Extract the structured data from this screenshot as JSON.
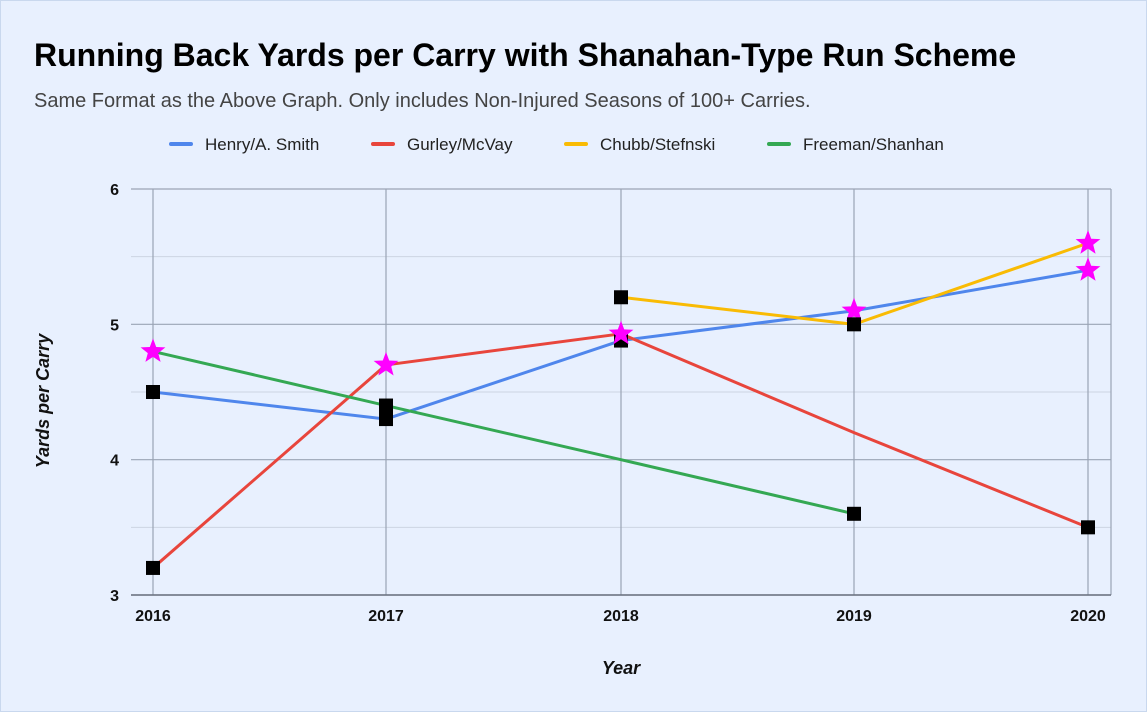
{
  "chart_data": {
    "type": "line",
    "title": "Running Back Yards per Carry with Shanahan-Type Run Scheme",
    "subtitle": "Same Format as the Above Graph. Only includes Non-Injured Seasons of 100+ Carries.",
    "xlabel": "Year",
    "ylabel": "Yards per Carry",
    "categories": [
      "2016",
      "2017",
      "2018",
      "2019",
      "2020"
    ],
    "ylim": [
      3,
      6
    ],
    "yticks": [
      "3",
      "4",
      "5",
      "6"
    ],
    "grid": true,
    "legend_position": "top",
    "series": [
      {
        "name": "Henry/A. Smith",
        "color": "#4f86ec",
        "values": [
          4.5,
          4.3,
          4.88,
          5.1,
          5.4
        ],
        "markers": [
          "square",
          "square",
          "square",
          "star",
          "star"
        ]
      },
      {
        "name": "Gurley/McVay",
        "color": "#e8453c",
        "values": [
          3.2,
          4.7,
          4.93,
          4.2,
          3.5
        ],
        "markers": [
          "square",
          "star",
          "star",
          "none",
          "square"
        ]
      },
      {
        "name": "Chubb/Stefnski",
        "color": "#f9bb04",
        "values": [
          null,
          null,
          5.2,
          5.0,
          5.6
        ],
        "markers": [
          "none",
          "none",
          "square",
          "square",
          "star"
        ]
      },
      {
        "name": "Freeman/Shanhan",
        "color": "#34a853",
        "values": [
          4.8,
          4.4,
          4.0,
          3.6,
          null
        ],
        "markers": [
          "star",
          "square",
          "none",
          "square",
          "none"
        ]
      }
    ],
    "marker_colors": {
      "square": "#000000",
      "star": "#ff00ff"
    }
  }
}
